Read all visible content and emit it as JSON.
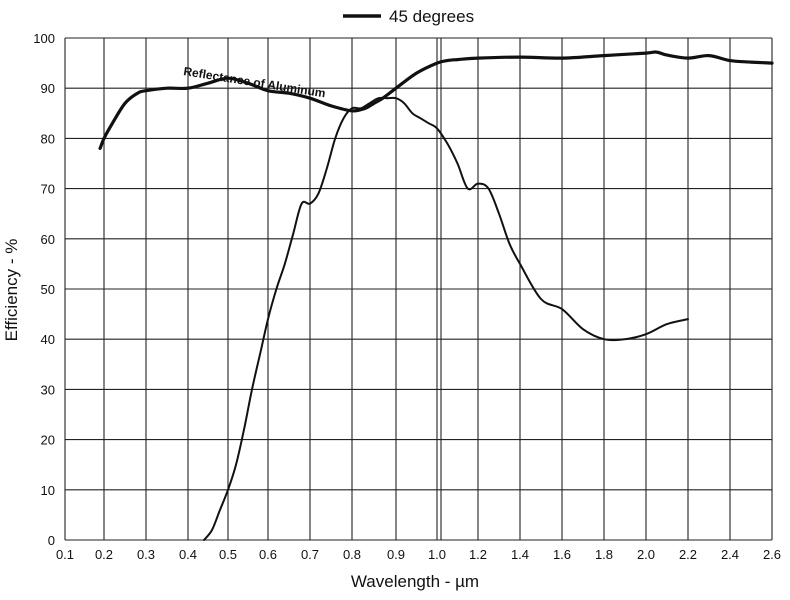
{
  "chart_data": {
    "type": "line",
    "title": "",
    "xlabel": "Wavelength - µm",
    "ylabel": "Efficiency - %",
    "xlim": [
      0.1,
      2.6
    ],
    "ylim": [
      0,
      100
    ],
    "grid": true,
    "legend_position": "top-center",
    "x_tick_labels": [
      "0.1",
      "0.2",
      "0.3",
      "0.4",
      "0.5",
      "0.6",
      "0.7",
      "0.8",
      "0.9",
      "1.0",
      "1.2",
      "1.4",
      "1.6",
      "1.8",
      "2.0",
      "2.2",
      "2.4",
      "2.6"
    ],
    "x_tick_values": [
      0.1,
      0.2,
      0.3,
      0.4,
      0.5,
      0.6,
      0.7,
      0.8,
      0.9,
      1.0,
      1.2,
      1.4,
      1.6,
      1.8,
      2.0,
      2.2,
      2.4,
      2.6
    ],
    "y_tick_labels": [
      "0",
      "10",
      "20",
      "30",
      "40",
      "50",
      "60",
      "70",
      "80",
      "90",
      "100"
    ],
    "y_tick_values": [
      0,
      10,
      20,
      30,
      40,
      50,
      60,
      70,
      80,
      90,
      100
    ],
    "series": [
      {
        "name": "45 degrees",
        "x": [
          0.44,
          0.46,
          0.48,
          0.5,
          0.52,
          0.54,
          0.56,
          0.58,
          0.6,
          0.62,
          0.64,
          0.66,
          0.68,
          0.7,
          0.72,
          0.74,
          0.76,
          0.78,
          0.8,
          0.82,
          0.84,
          0.86,
          0.88,
          0.9,
          0.92,
          0.94,
          0.96,
          0.98,
          1.0,
          1.05,
          1.1,
          1.15,
          1.2,
          1.25,
          1.3,
          1.35,
          1.4,
          1.5,
          1.6,
          1.7,
          1.8,
          1.9,
          2.0,
          2.1,
          2.2
        ],
        "y": [
          0,
          2,
          6,
          10,
          15,
          22,
          30,
          37,
          44,
          50,
          55,
          61,
          67,
          67,
          69,
          74,
          80,
          84,
          86,
          86,
          87,
          88,
          88,
          88,
          87,
          85,
          84,
          83,
          82,
          79,
          75,
          70,
          71,
          70,
          65,
          59,
          55,
          48,
          46,
          42,
          40,
          40,
          41,
          43,
          44
        ]
      },
      {
        "name": "Reflectance of Aluminum",
        "x": [
          0.19,
          0.2,
          0.22,
          0.25,
          0.28,
          0.3,
          0.35,
          0.4,
          0.45,
          0.5,
          0.55,
          0.6,
          0.65,
          0.7,
          0.75,
          0.8,
          0.83,
          0.85,
          0.87,
          0.9,
          0.95,
          1.0,
          1.05,
          1.1,
          1.2,
          1.4,
          1.6,
          1.8,
          2.0,
          2.05,
          2.1,
          2.2,
          2.3,
          2.4,
          2.5,
          2.6
        ],
        "y": [
          78,
          80,
          83,
          87,
          89,
          89.5,
          90,
          90,
          91,
          92,
          91,
          89.5,
          89,
          88,
          86.5,
          85.5,
          86,
          87,
          88,
          90,
          93,
          95,
          95.5,
          95.7,
          96,
          96.2,
          96,
          96.5,
          97,
          97.2,
          96.6,
          96,
          96.5,
          95.5,
          95.2,
          95
        ]
      }
    ],
    "legend": [
      {
        "label": "45 degrees"
      }
    ],
    "annotations": [
      {
        "text": "Reflectance of Aluminum",
        "attached_to": "Reflectance of Aluminum"
      }
    ]
  }
}
